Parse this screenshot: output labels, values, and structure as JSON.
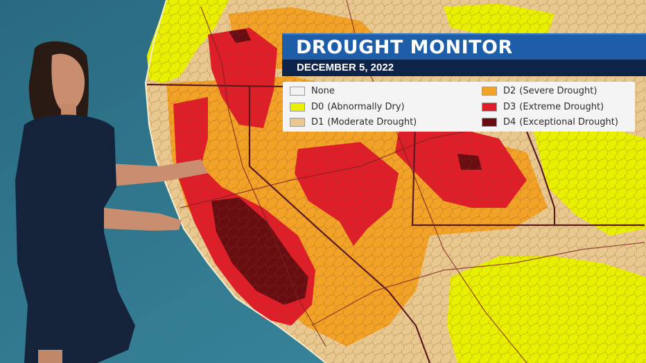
{
  "header": {
    "title": "DROUGHT MONITOR",
    "date": "DECEMBER 5, 2022"
  },
  "legend": {
    "items": [
      {
        "code": "None",
        "label": "",
        "color": "#f2f2f2"
      },
      {
        "code": "D0",
        "label": "(Abnormally Dry)",
        "color": "#e8f000"
      },
      {
        "code": "D1",
        "label": "(Moderate Drought)",
        "color": "#e9c88f"
      },
      {
        "code": "D2",
        "label": "(Severe Drought)",
        "color": "#f2a227"
      },
      {
        "code": "D3",
        "label": "(Extreme Drought)",
        "color": "#e01e2a"
      },
      {
        "code": "D4",
        "label": "(Exceptional Drought)",
        "color": "#6a0d12"
      }
    ]
  },
  "colors": {
    "ocean": "#2d7389",
    "title_bar": "#1e5ea8",
    "date_bar": "#0d2347"
  }
}
